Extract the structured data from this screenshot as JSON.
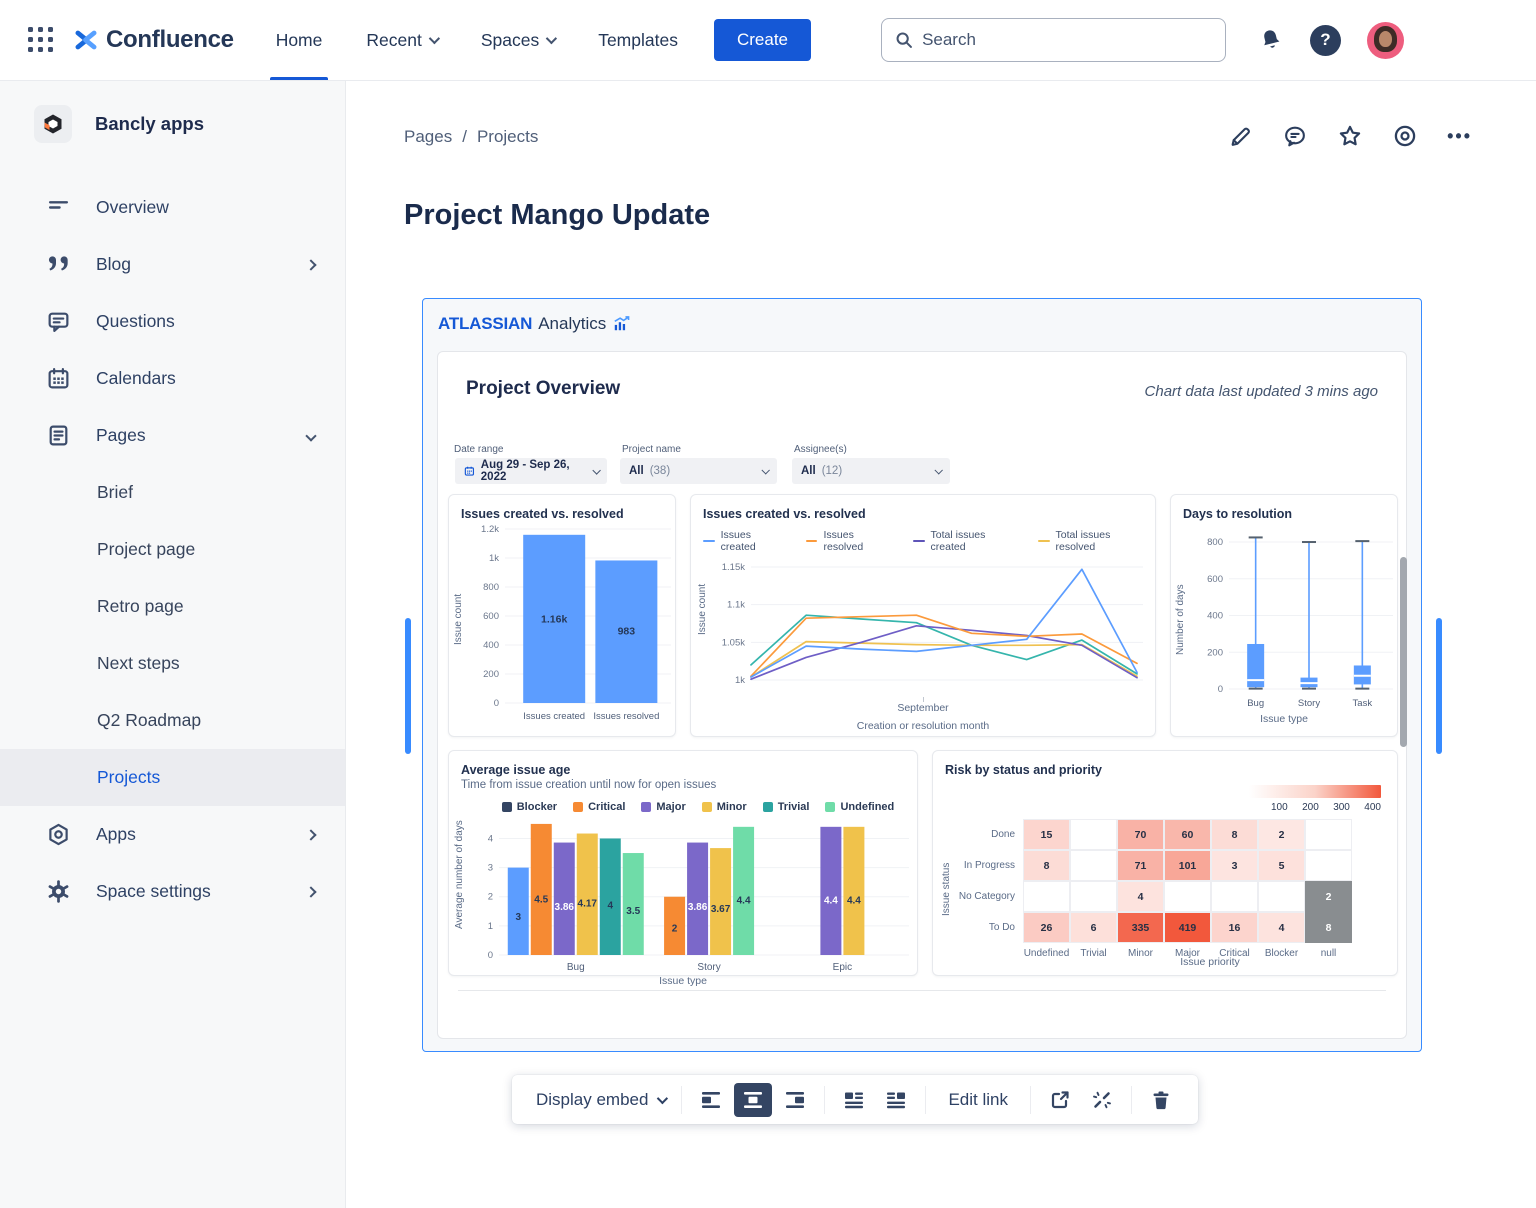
{
  "nav": {
    "brand": "Confluence",
    "home": "Home",
    "recent": "Recent",
    "spaces": "Spaces",
    "templates": "Templates",
    "create_label": "Create",
    "search_placeholder": "Search"
  },
  "icons": {
    "help_glyph": "?",
    "more_glyph": "•••",
    "slash": "/"
  },
  "sidebar": {
    "space_name": "Bancly apps",
    "items": [
      {
        "label": "Overview",
        "chevron": "none"
      },
      {
        "label": "Blog",
        "chevron": "right"
      },
      {
        "label": "Questions",
        "chevron": "none"
      },
      {
        "label": "Calendars",
        "chevron": "none"
      },
      {
        "label": "Pages",
        "chevron": "down"
      }
    ],
    "sub_pages": [
      "Brief",
      "Project page",
      "Retro page",
      "Next steps",
      "Q2 Roadmap",
      "Projects"
    ],
    "selected_sub_page": "Projects",
    "bottom_items": [
      {
        "label": "Apps",
        "chevron": "right"
      },
      {
        "label": "Space settings",
        "chevron": "right"
      }
    ]
  },
  "page": {
    "breadcrumb": [
      "Pages",
      "Projects"
    ],
    "title": "Project Mango Update"
  },
  "embed": {
    "brand_bold": "ATLASSIAN",
    "brand_light": "Analytics",
    "heading": "Project Overview",
    "updated": "Chart data last updated 3 mins ago",
    "filters": [
      {
        "label": "Date range",
        "value": "Aug 29 - Sep 26, 2022",
        "count": ""
      },
      {
        "label": "Project name",
        "value": "All",
        "count": "(38)"
      },
      {
        "label": "Assignee(s)",
        "value": "All",
        "count": "(12)"
      }
    ]
  },
  "toolbar": {
    "display_embed": "Display embed",
    "edit_link": "Edit link"
  },
  "chart_data": [
    {
      "type": "bar",
      "title": "Issues created vs. resolved",
      "ylabel": "Issue count",
      "ymax": 1200,
      "yticks": [
        {
          "v": 1200,
          "label": "1.2k"
        },
        {
          "v": 1000,
          "label": "1k"
        },
        {
          "v": 800,
          "label": "800"
        },
        {
          "v": 600,
          "label": "600"
        },
        {
          "v": 400,
          "label": "400"
        },
        {
          "v": 200,
          "label": "200"
        },
        {
          "v": 0,
          "label": "0"
        }
      ],
      "categories": [
        "Issues created",
        "Issues resolved"
      ],
      "values": [
        1160,
        983
      ],
      "value_labels": [
        "1.16k",
        "983"
      ],
      "bar_color": "#5C9DFF"
    },
    {
      "type": "line",
      "title": "Issues created vs. resolved",
      "ylabel": "Issue count",
      "xlabel": "Creation or resolution month",
      "x_tick_label": "September",
      "ymin": 988,
      "ymax": 1158,
      "yticks": [
        {
          "v": 1000,
          "label": "1k"
        },
        {
          "v": 1050,
          "label": "1.05k"
        },
        {
          "v": 1100,
          "label": "1.1k"
        },
        {
          "v": 1150,
          "label": "1.15k"
        }
      ],
      "legend": [
        {
          "name": "Issues created",
          "color": "#5C9DFF"
        },
        {
          "name": "Issues resolved",
          "color": "#FB9A3C"
        },
        {
          "name": "Total issues created",
          "color": "#5E54B8"
        },
        {
          "name": "Total issues resolved",
          "color": "#EFC150"
        }
      ],
      "series": [
        {
          "name": "(unlabeled teal series)",
          "color": "#35B5AC",
          "values": [
            1020,
            1086,
            1081,
            1076,
            1046,
            1027,
            1053,
            1008
          ]
        },
        {
          "name": "Total issues resolved",
          "color": "#EFC150",
          "values": [
            1004,
            1051,
            1049,
            1047,
            1046,
            1046,
            1047,
            1005
          ]
        },
        {
          "name": "Total issues created",
          "color": "#6E5EC6",
          "values": [
            1001,
            1030,
            1050,
            1072,
            1066,
            1059,
            1046,
            1003
          ]
        },
        {
          "name": "Issues resolved",
          "color": "#FB9A3C",
          "values": [
            1005,
            1082,
            1084,
            1086,
            1062,
            1058,
            1061,
            1022
          ]
        },
        {
          "name": "Issues created",
          "color": "#5C9DFF",
          "values": [
            1004,
            1045,
            1041,
            1038,
            1046,
            1054,
            1147,
            1010
          ]
        }
      ]
    },
    {
      "type": "box",
      "title": "Days to resolution",
      "ylabel": "Number of days",
      "xlabel": "Issue type",
      "ymax": 860,
      "yticks": [
        0,
        200,
        400,
        600,
        800
      ],
      "items": [
        {
          "label": "Bug",
          "min": 2,
          "q1": 10,
          "median": 48,
          "q3": 245,
          "max": 825
        },
        {
          "label": "Story",
          "min": 2,
          "q1": 10,
          "median": 32,
          "q3": 62,
          "max": 800
        },
        {
          "label": "Task",
          "min": 2,
          "q1": 25,
          "median": 72,
          "q3": 128,
          "max": 805
        }
      ],
      "box_color": "#5C9DFF",
      "cap_color": "#55616E"
    },
    {
      "type": "grouped_bar",
      "title": "Average issue age",
      "subtitle": "Time from issue creation until now for open issues",
      "ylabel": "Average number of days",
      "xlabel": "Issue type",
      "ymax": 4.6,
      "yticks": [
        0,
        1,
        2,
        3,
        4
      ],
      "legend": [
        {
          "name": "Blocker",
          "color": "#344563"
        },
        {
          "name": "Critical",
          "color": "#F68A33"
        },
        {
          "name": "Major",
          "color": "#7B68C9"
        },
        {
          "name": "Minor",
          "color": "#F0C24B"
        },
        {
          "name": "Trivial",
          "color": "#2BA3A0"
        },
        {
          "name": "Undefined",
          "color": "#6FDCA8"
        }
      ],
      "groups": [
        {
          "label": "Bug",
          "bars": [
            {
              "series": "Blocker",
              "value": 3,
              "label": "3",
              "color": "#5C9DFF",
              "text": "#253858"
            },
            {
              "series": "Critical",
              "value": 4.5,
              "label": "4.5",
              "color": "#F68A33",
              "text": "#253858"
            },
            {
              "series": "Major",
              "value": 3.86,
              "label": "3.86",
              "color": "#7B68C9",
              "text": "#FFFFFF"
            },
            {
              "series": "Minor",
              "value": 4.17,
              "label": "4.17",
              "color": "#F0C24B",
              "text": "#253858"
            },
            {
              "series": "Trivial",
              "value": 4,
              "label": "4",
              "color": "#2BA3A0",
              "text": "#253858"
            },
            {
              "series": "Undefined",
              "value": 3.5,
              "label": "3.5",
              "color": "#6FDCA8",
              "text": "#253858"
            }
          ]
        },
        {
          "label": "Story",
          "bars": [
            {
              "series": "Critical",
              "value": 2,
              "label": "2",
              "color": "#F68A33",
              "text": "#253858"
            },
            {
              "series": "Major",
              "value": 3.86,
              "label": "3.86",
              "color": "#7B68C9",
              "text": "#FFFFFF"
            },
            {
              "series": "Minor",
              "value": 3.67,
              "label": "3.67",
              "color": "#F0C24B",
              "text": "#253858"
            },
            {
              "series": "Undefined",
              "value": 4.4,
              "label": "4.4",
              "color": "#6FDCA8",
              "text": "#253858"
            }
          ]
        },
        {
          "label": "Epic",
          "bars": [
            {
              "series": "Major",
              "value": 4.4,
              "label": "4.4",
              "color": "#7B68C9",
              "text": "#FFFFFF"
            },
            {
              "series": "Minor",
              "value": 4.4,
              "label": "4.4",
              "color": "#F0C24B",
              "text": "#253858"
            }
          ]
        }
      ]
    },
    {
      "type": "heatmap",
      "title": "Risk by status and priority",
      "ylabel": "Issue status",
      "xlabel": "Issue priority",
      "columns": [
        "Undefined",
        "Trivial",
        "Minor",
        "Major",
        "Critical",
        "Blocker",
        "null"
      ],
      "rows": [
        {
          "label": "Done",
          "values": [
            15,
            null,
            70,
            60,
            8,
            2,
            null
          ]
        },
        {
          "label": "In Progress",
          "values": [
            8,
            null,
            71,
            101,
            3,
            5,
            null
          ]
        },
        {
          "label": "No Category",
          "values": [
            null,
            null,
            4,
            null,
            null,
            null,
            2
          ]
        },
        {
          "label": "To Do",
          "values": [
            26,
            6,
            335,
            419,
            16,
            4,
            8
          ]
        }
      ],
      "scale_max": 419,
      "max_color": "#F2583C",
      "null_column_color": "#898D90",
      "legend_ticks": [
        "100",
        "200",
        "300",
        "400"
      ]
    }
  ]
}
